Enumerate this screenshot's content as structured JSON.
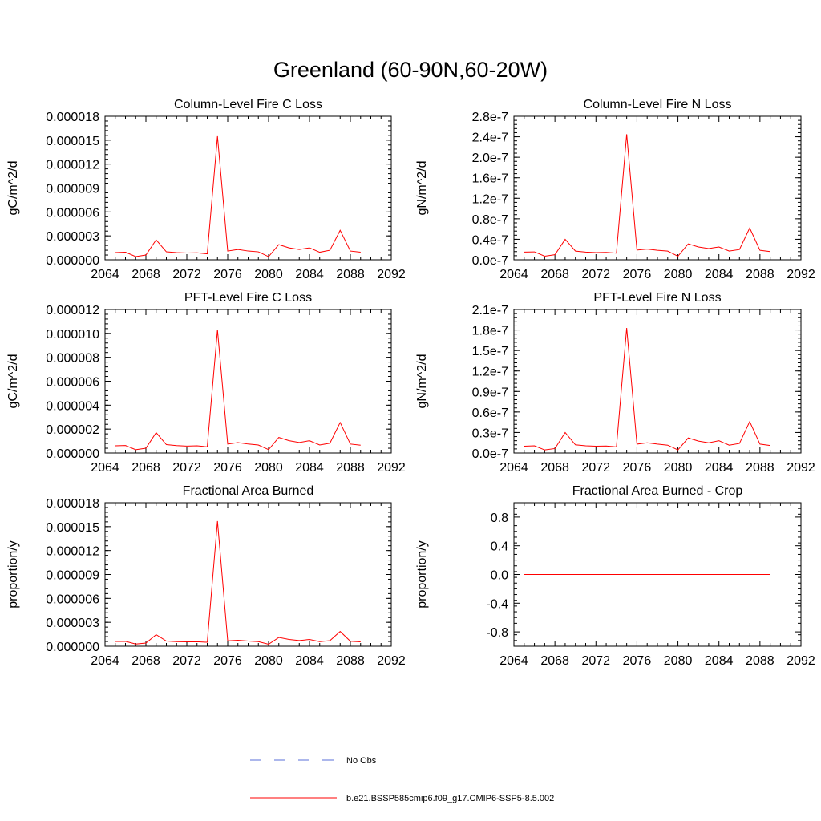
{
  "title": "Greenland (60-90N,60-20W)",
  "legend": {
    "obs_label": "No Obs",
    "obs_color": "#5a6fd8",
    "model_label": "b.e21.BSSP585cmip6.f09_g17.CMIP6-SSP5-8.5.002",
    "model_color": "#ff0000"
  },
  "chart_data": [
    {
      "type": "line",
      "title": "Column-Level Fire C Loss",
      "ylabel": "gC/m^2/d",
      "xlim": [
        2064,
        2092
      ],
      "ylim": [
        0,
        1.8e-05
      ],
      "xticks": [
        "2064",
        "2068",
        "2072",
        "2076",
        "2080",
        "2084",
        "2088",
        "2092"
      ],
      "yticks": [
        "0.000000",
        "0.000003",
        "0.000006",
        "0.000009",
        "0.000012",
        "0.000015",
        "0.000018"
      ],
      "x": [
        2065,
        2066,
        2067,
        2068,
        2069,
        2070,
        2071,
        2072,
        2073,
        2074,
        2075,
        2076,
        2077,
        2078,
        2079,
        2080,
        2081,
        2082,
        2083,
        2084,
        2085,
        2086,
        2087,
        2088,
        2089
      ],
      "series": [
        {
          "name": "b.e21.BSSP585cmip6.f09_g17.CMIP6-SSP5-8.5.002",
          "values": [
            9e-07,
            9.5e-07,
            4e-07,
            6e-07,
            2.5e-06,
            1e-06,
            9e-07,
            8.5e-07,
            8.8e-07,
            7.5e-07,
            1.55e-05,
            1.1e-06,
            1.3e-06,
            1.1e-06,
            1e-06,
            4e-07,
            1.9e-06,
            1.5e-06,
            1.3e-06,
            1.5e-06,
            9.5e-07,
            1.2e-06,
            3.7e-06,
            1.1e-06,
            9.5e-07
          ]
        }
      ]
    },
    {
      "type": "line",
      "title": "Column-Level Fire N Loss",
      "ylabel": "gN/m^2/d",
      "xlim": [
        2064,
        2092
      ],
      "ylim": [
        0,
        2.8e-07
      ],
      "xticks": [
        "2064",
        "2068",
        "2072",
        "2076",
        "2080",
        "2084",
        "2088",
        "2092"
      ],
      "yticks": [
        "0.0e-7",
        "0.4e-7",
        "0.8e-7",
        "1.2e-7",
        "1.6e-7",
        "2.0e-7",
        "2.4e-7",
        "2.8e-7"
      ],
      "x": [
        2065,
        2066,
        2067,
        2068,
        2069,
        2070,
        2071,
        2072,
        2073,
        2074,
        2075,
        2076,
        2077,
        2078,
        2079,
        2080,
        2081,
        2082,
        2083,
        2084,
        2085,
        2086,
        2087,
        2088,
        2089
      ],
      "series": [
        {
          "name": "b.e21.BSSP585cmip6.f09_g17.CMIP6-SSP5-8.5.002",
          "values": [
            1.5e-08,
            1.55e-08,
            7e-09,
            1e-08,
            4e-08,
            1.7e-08,
            1.5e-08,
            1.4e-08,
            1.45e-08,
            1.3e-08,
            2.45e-07,
            1.9e-08,
            2.1e-08,
            1.85e-08,
            1.7e-08,
            7e-09,
            3.1e-08,
            2.5e-08,
            2.2e-08,
            2.5e-08,
            1.7e-08,
            2e-08,
            6.2e-08,
            1.85e-08,
            1.6e-08
          ]
        }
      ]
    },
    {
      "type": "line",
      "title": "PFT-Level Fire C Loss",
      "ylabel": "gC/m^2/d",
      "xlim": [
        2064,
        2092
      ],
      "ylim": [
        0,
        1.2e-05
      ],
      "xticks": [
        "2064",
        "2068",
        "2072",
        "2076",
        "2080",
        "2084",
        "2088",
        "2092"
      ],
      "yticks": [
        "0.000000",
        "0.000002",
        "0.000004",
        "0.000006",
        "0.000008",
        "0.000010",
        "0.000012"
      ],
      "x": [
        2065,
        2066,
        2067,
        2068,
        2069,
        2070,
        2071,
        2072,
        2073,
        2074,
        2075,
        2076,
        2077,
        2078,
        2079,
        2080,
        2081,
        2082,
        2083,
        2084,
        2085,
        2086,
        2087,
        2088,
        2089
      ],
      "series": [
        {
          "name": "b.e21.BSSP585cmip6.f09_g17.CMIP6-SSP5-8.5.002",
          "values": [
            6e-07,
            6.3e-07,
            2.8e-07,
            4e-07,
            1.7e-06,
            7e-07,
            6.2e-07,
            5.8e-07,
            6e-07,
            5.2e-07,
            1.03e-05,
            7.5e-07,
            8.7e-07,
            7.5e-07,
            6.7e-07,
            2.8e-07,
            1.3e-06,
            1.03e-06,
            8.8e-07,
            1.03e-06,
            6.7e-07,
            8.2e-07,
            2.55e-06,
            7.5e-07,
            6.5e-07
          ]
        }
      ]
    },
    {
      "type": "line",
      "title": "PFT-Level Fire N Loss",
      "ylabel": "gN/m^2/d",
      "xlim": [
        2064,
        2092
      ],
      "ylim": [
        0,
        2.1e-07
      ],
      "xticks": [
        "2064",
        "2068",
        "2072",
        "2076",
        "2080",
        "2084",
        "2088",
        "2092"
      ],
      "yticks": [
        "0.0e-7",
        "0.3e-7",
        "0.6e-7",
        "0.9e-7",
        "1.2e-7",
        "1.5e-7",
        "1.8e-7",
        "2.1e-7"
      ],
      "x": [
        2065,
        2066,
        2067,
        2068,
        2069,
        2070,
        2071,
        2072,
        2073,
        2074,
        2075,
        2076,
        2077,
        2078,
        2079,
        2080,
        2081,
        2082,
        2083,
        2084,
        2085,
        2086,
        2087,
        2088,
        2089
      ],
      "series": [
        {
          "name": "b.e21.BSSP585cmip6.f09_g17.CMIP6-SSP5-8.5.002",
          "values": [
            1e-08,
            1.05e-08,
            4.5e-09,
            6.5e-09,
            3e-08,
            1.2e-08,
            1.05e-08,
            1e-08,
            1.02e-08,
            9e-09,
            1.83e-07,
            1.3e-08,
            1.5e-08,
            1.3e-08,
            1.15e-08,
            4.5e-09,
            2.2e-08,
            1.75e-08,
            1.5e-08,
            1.8e-08,
            1.15e-08,
            1.4e-08,
            4.6e-08,
            1.3e-08,
            1.1e-08
          ]
        }
      ]
    },
    {
      "type": "line",
      "title": "Fractional Area Burned",
      "ylabel": "proportion/y",
      "xlim": [
        2064,
        2092
      ],
      "ylim": [
        0,
        1.8e-05
      ],
      "xticks": [
        "2064",
        "2068",
        "2072",
        "2076",
        "2080",
        "2084",
        "2088",
        "2092"
      ],
      "yticks": [
        "0.000000",
        "0.000003",
        "0.000006",
        "0.000009",
        "0.000012",
        "0.000015",
        "0.000018"
      ],
      "x": [
        2065,
        2066,
        2067,
        2068,
        2069,
        2070,
        2071,
        2072,
        2073,
        2074,
        2075,
        2076,
        2077,
        2078,
        2079,
        2080,
        2081,
        2082,
        2083,
        2084,
        2085,
        2086,
        2087,
        2088,
        2089
      ],
      "series": [
        {
          "name": "b.e21.BSSP585cmip6.f09_g17.CMIP6-SSP5-8.5.002",
          "values": [
            6e-07,
            6.2e-07,
            2.8e-07,
            4e-07,
            1.45e-06,
            6.5e-07,
            5.8e-07,
            5.5e-07,
            5.6e-07,
            5e-07,
            1.57e-05,
            6.8e-07,
            7.5e-07,
            6.5e-07,
            5.8e-07,
            2.5e-07,
            1.1e-06,
            8.5e-07,
            7.2e-07,
            8.5e-07,
            5.8e-07,
            7e-07,
            1.85e-06,
            6.3e-07,
            5.5e-07
          ]
        }
      ]
    },
    {
      "type": "line",
      "title": "Fractional Area Burned - Crop",
      "ylabel": "proportion/y",
      "xlim": [
        2064,
        2092
      ],
      "ylim": [
        -1,
        1
      ],
      "xticks": [
        "2064",
        "2068",
        "2072",
        "2076",
        "2080",
        "2084",
        "2088",
        "2092"
      ],
      "yticks": [
        "-0.8",
        "-0.4",
        "0.0",
        "0.4",
        "0.8"
      ],
      "x": [
        2065,
        2066,
        2067,
        2068,
        2069,
        2070,
        2071,
        2072,
        2073,
        2074,
        2075,
        2076,
        2077,
        2078,
        2079,
        2080,
        2081,
        2082,
        2083,
        2084,
        2085,
        2086,
        2087,
        2088,
        2089
      ],
      "series": [
        {
          "name": "b.e21.BSSP585cmip6.f09_g17.CMIP6-SSP5-8.5.002",
          "values": [
            0,
            0,
            0,
            0,
            0,
            0,
            0,
            0,
            0,
            0,
            0,
            0,
            0,
            0,
            0,
            0,
            0,
            0,
            0,
            0,
            0,
            0,
            0,
            0,
            0
          ]
        }
      ]
    }
  ]
}
